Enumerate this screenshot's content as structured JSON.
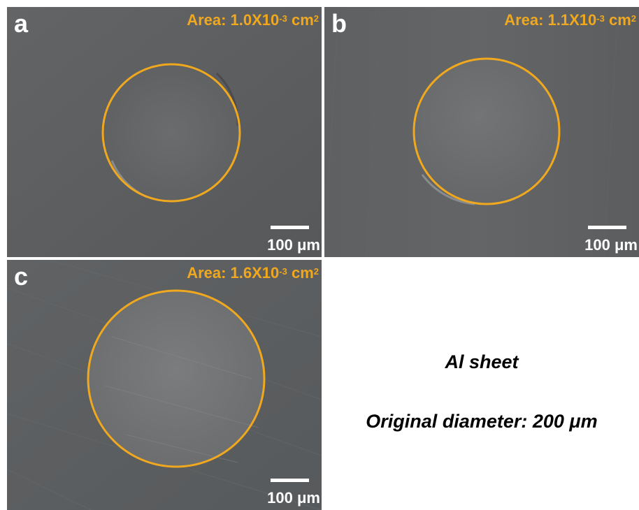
{
  "panels": [
    {
      "letter": "a",
      "area_prefix": "Area: 1.0X10",
      "area_exponent": "-3",
      "area_unit": " cm",
      "area_unit_exponent": "2",
      "scale_label": "100 μm"
    },
    {
      "letter": "b",
      "area_prefix": "Area: 1.1X10",
      "area_exponent": "-3",
      "area_unit": " cm",
      "area_unit_exponent": "2",
      "scale_label": "100 μm"
    },
    {
      "letter": "c",
      "area_prefix": "Area: 1.6X10",
      "area_exponent": "-3",
      "area_unit": " cm",
      "area_unit_exponent": "2",
      "scale_label": "100 μm"
    }
  ],
  "info": {
    "material": "Al sheet",
    "diameter": "Original diameter: 200 μm"
  },
  "colors": {
    "outline": "#f0a81e",
    "label": "#f0a81e",
    "background_sem": "#5d5f61",
    "scale": "#ffffff"
  }
}
